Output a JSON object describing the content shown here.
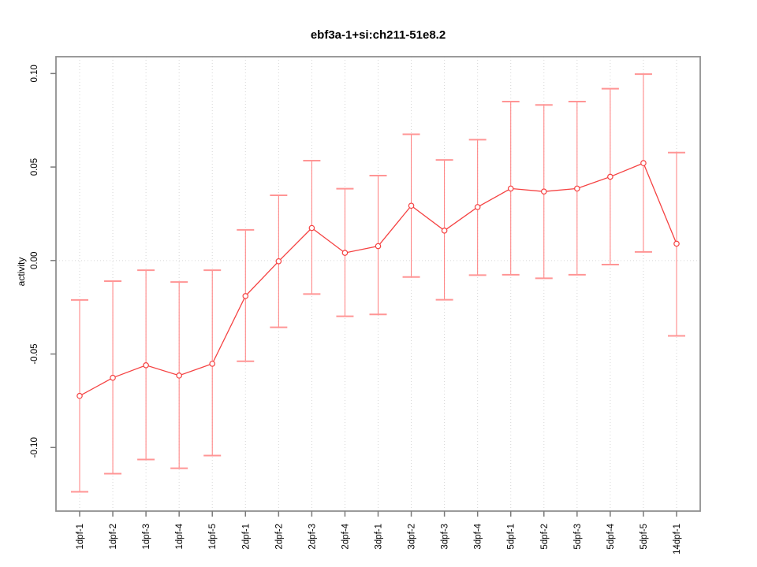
{
  "window": {
    "background": "#ffffff"
  },
  "chart_data": {
    "type": "line",
    "subtype": "means-with-error-bars",
    "title": "ebf3a-1+si:ch211-51e8.2",
    "xlabel": "",
    "ylabel": "activity",
    "categories": [
      "1dpf-1",
      "1dpf-2",
      "1dpf-3",
      "1dpf-4",
      "1dpf-5",
      "2dpf-1",
      "2dpf-2",
      "2dpf-3",
      "2dpf-4",
      "3dpf-1",
      "3dpf-2",
      "3dpf-3",
      "3dpf-4",
      "5dpf-1",
      "5dpf-2",
      "5dpf-3",
      "5dpf-4",
      "5dpf-5",
      "14dpf-1"
    ],
    "series": [
      {
        "name": "mean activity",
        "values": [
          -0.0724,
          -0.0627,
          -0.056,
          -0.0615,
          -0.0552,
          -0.019,
          -0.0004,
          0.0174,
          0.0041,
          0.0077,
          0.0293,
          0.016,
          0.0286,
          0.0385,
          0.0369,
          0.0385,
          0.0448,
          0.0521,
          0.009
        ]
      }
    ],
    "error_lower": [
      -0.1237,
      -0.114,
      -0.1064,
      -0.1111,
      -0.1043,
      -0.0539,
      -0.0357,
      -0.0179,
      -0.0298,
      -0.0288,
      -0.0088,
      -0.021,
      -0.0078,
      -0.0076,
      -0.0095,
      -0.0076,
      -0.0022,
      0.0046,
      -0.0403
    ],
    "error_upper": [
      -0.0211,
      -0.011,
      -0.0052,
      -0.0115,
      -0.0052,
      0.0164,
      0.0349,
      0.0534,
      0.0384,
      0.0454,
      0.0675,
      0.0538,
      0.0646,
      0.085,
      0.0832,
      0.085,
      0.0919,
      0.0997,
      0.0577
    ],
    "yticks": [
      0.1,
      0.05,
      0.0,
      -0.05,
      -0.1
    ],
    "ylim": [
      -0.134,
      0.109
    ],
    "grid": {
      "vertical_dotted_per_category": true,
      "horizontal_dotted_at_zero": true
    },
    "legend": "none",
    "colors": {
      "line": "#f54242",
      "point": "#f54242",
      "error_bar": "#ff7d7d",
      "error_cap": "#ff9595",
      "grid": "#d6d6d6",
      "frame": "#909090",
      "tick": "#7a7a7a",
      "text": "#000000"
    }
  }
}
